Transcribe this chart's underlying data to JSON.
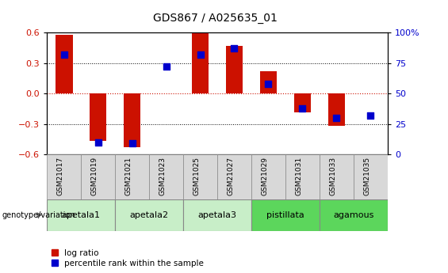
{
  "title": "GDS867 / A025635_01",
  "samples": [
    "GSM21017",
    "GSM21019",
    "GSM21021",
    "GSM21023",
    "GSM21025",
    "GSM21027",
    "GSM21029",
    "GSM21031",
    "GSM21033",
    "GSM21035"
  ],
  "log_ratios": [
    0.58,
    -0.47,
    -0.53,
    0.0,
    0.595,
    0.47,
    0.22,
    -0.19,
    -0.32,
    0.0
  ],
  "percentile_ranks": [
    82,
    10,
    9,
    72,
    82,
    87,
    58,
    38,
    30,
    32
  ],
  "groups": [
    {
      "label": "apetala1",
      "samples": [
        0,
        1
      ],
      "color": "#c8eec8"
    },
    {
      "label": "apetala2",
      "samples": [
        2,
        3
      ],
      "color": "#c8eec8"
    },
    {
      "label": "apetala3",
      "samples": [
        4,
        5
      ],
      "color": "#c8eec8"
    },
    {
      "label": "pistillata",
      "samples": [
        6,
        7
      ],
      "color": "#5cd65c"
    },
    {
      "label": "agamous",
      "samples": [
        8,
        9
      ],
      "color": "#5cd65c"
    }
  ],
  "ylim": [
    -0.6,
    0.6
  ],
  "yticks_left": [
    -0.6,
    -0.3,
    0.0,
    0.3,
    0.6
  ],
  "yticks_right": [
    0,
    25,
    50,
    75,
    100
  ],
  "bar_color": "#cc1100",
  "dot_color": "#0000cc",
  "bar_width": 0.5,
  "dot_size": 40,
  "background_color": "#ffffff",
  "zero_line_color": "#cc1100",
  "legend_items": [
    "log ratio",
    "percentile rank within the sample"
  ],
  "genotype_label": "genotype/variation"
}
